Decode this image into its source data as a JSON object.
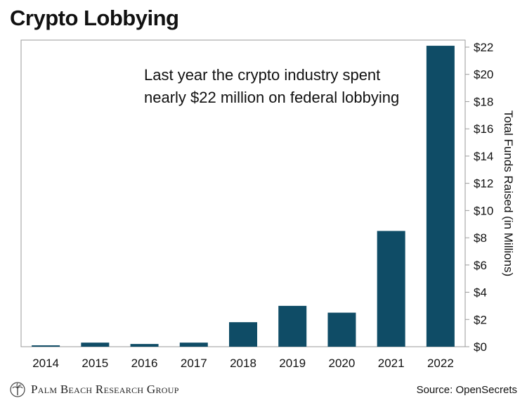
{
  "header": {
    "title": "Crypto Lobbying"
  },
  "chart_data": {
    "type": "bar",
    "annotation": [
      "Last year the crypto industry spent",
      "nearly $22 million on federal lobbying"
    ],
    "categories": [
      "2014",
      "2015",
      "2016",
      "2017",
      "2018",
      "2019",
      "2020",
      "2021",
      "2022"
    ],
    "values": [
      0.1,
      0.3,
      0.2,
      0.3,
      1.8,
      3.0,
      2.5,
      8.5,
      22.1
    ],
    "ylabel": "Total Funds Raised (in Millions)",
    "ylim": [
      0,
      22
    ],
    "yticks": [
      "$0",
      "$2",
      "$4",
      "$6",
      "$8",
      "$10",
      "$12",
      "$14",
      "$16",
      "$18",
      "$20",
      "$22"
    ],
    "yaxis_position": "right",
    "grid": false,
    "bar_color": "#0f4c66"
  },
  "footer": {
    "logo_text": "Palm Beach Research Group",
    "logo_icon": "palm-tree-seal-icon",
    "source": "Source: OpenSecrets"
  }
}
